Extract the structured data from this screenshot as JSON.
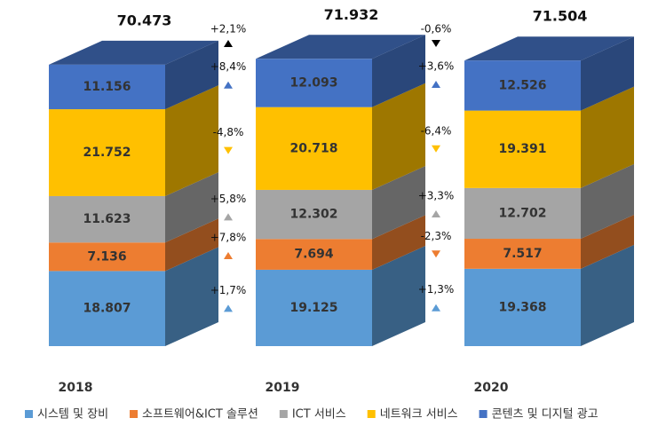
{
  "chart_data": {
    "type": "bar",
    "stacked": true,
    "categories": [
      "2018",
      "2019",
      "2020"
    ],
    "series": [
      {
        "name": "시스템 및 장비",
        "color": "#5b9bd5",
        "values": [
          18.807,
          19.125,
          19.368
        ]
      },
      {
        "name": "소프트웨어&ICT 솔루션",
        "color": "#ed7d31",
        "values": [
          7.136,
          7.694,
          7.517
        ]
      },
      {
        "name": "ICT 서비스",
        "color": "#a5a5a5",
        "values": [
          11.623,
          12.302,
          12.702
        ]
      },
      {
        "name": "네트워크 서비스",
        "color": "#ffc000",
        "values": [
          21.752,
          20.718,
          19.391
        ]
      },
      {
        "name": "콘텐츠 및 디지털 광고",
        "color": "#4472c4",
        "values": [
          11.156,
          12.093,
          12.526
        ]
      }
    ],
    "totals": [
      70.473,
      71.932,
      71.504
    ],
    "changes": [
      {
        "total": "+2,1%",
        "series": [
          "+1,7%",
          "+7,8%",
          "+5,8%",
          "-4,8%",
          "+8,4%"
        ]
      },
      {
        "total": "-0,6%",
        "series": [
          "+1,3%",
          "-2,3%",
          "+3,3%",
          "-6,4%",
          "+3,6%"
        ]
      }
    ]
  }
}
